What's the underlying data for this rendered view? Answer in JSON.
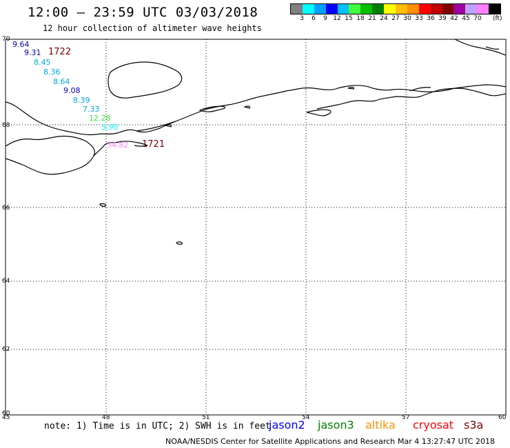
{
  "header": {
    "title": "12:00 – 23:59 UTC 03/03/2018",
    "subtitle": "12 hour collection of altimeter wave heights"
  },
  "colorbar": {
    "swatches": [
      "#808080",
      "#00ffff",
      "#00a0ff",
      "#0000ff",
      "#00c0ff",
      "#40ff40",
      "#00c000",
      "#008000",
      "#ffff00",
      "#ffc000",
      "#ff9000",
      "#ff0000",
      "#c00000",
      "#800000",
      "#a000a0",
      "#c0a0ff",
      "#ff80ff",
      "#000000"
    ],
    "ticks": [
      "3",
      "6",
      "9",
      "12",
      "15",
      "18",
      "21",
      "24",
      "27",
      "30",
      "33",
      "36",
      "39",
      "42",
      "45",
      "70"
    ],
    "unit": "(ft)"
  },
  "axes": {
    "lat_labels": [
      "70",
      "68",
      "66",
      "64",
      "62",
      "60"
    ],
    "lon_labels": [
      "45",
      "48",
      "51",
      "54",
      "57",
      "60"
    ]
  },
  "wave_heights": [
    {
      "value": "9.64",
      "color": "#0000b0"
    },
    {
      "value": "9.31",
      "color": "#0000b0"
    },
    {
      "value": "8.45",
      "color": "#00a8e0"
    },
    {
      "value": "8.36",
      "color": "#00a8e0"
    },
    {
      "value": "8.64",
      "color": "#00a8e0"
    },
    {
      "value": "9.08",
      "color": "#0000b0"
    },
    {
      "value": "8.39",
      "color": "#00a8e0"
    },
    {
      "value": "7.33",
      "color": "#00a8e0"
    },
    {
      "value": "12.28",
      "color": "#40e040"
    },
    {
      "value": "5.90",
      "color": "#00ffff"
    },
    {
      "value": "54.82",
      "color": "#ff80ff"
    }
  ],
  "passes": [
    "1722",
    "1721"
  ],
  "footer": {
    "note": "note: 1) Time is in UTC; 2) SWH is in feet",
    "satellites": [
      {
        "name": "jason2",
        "color": "#0000ff"
      },
      {
        "name": "jason3",
        "color": "#008000"
      },
      {
        "name": "altika",
        "color": "#ff9000"
      },
      {
        "name": "cryosat",
        "color": "#ff0000"
      },
      {
        "name": "s3a",
        "color": "#800000"
      }
    ],
    "credit": "NOAA/NESDIS Center for Satellite Applications and Research",
    "timestamp": "Mar  4 13:27:47 UTC 2018"
  }
}
